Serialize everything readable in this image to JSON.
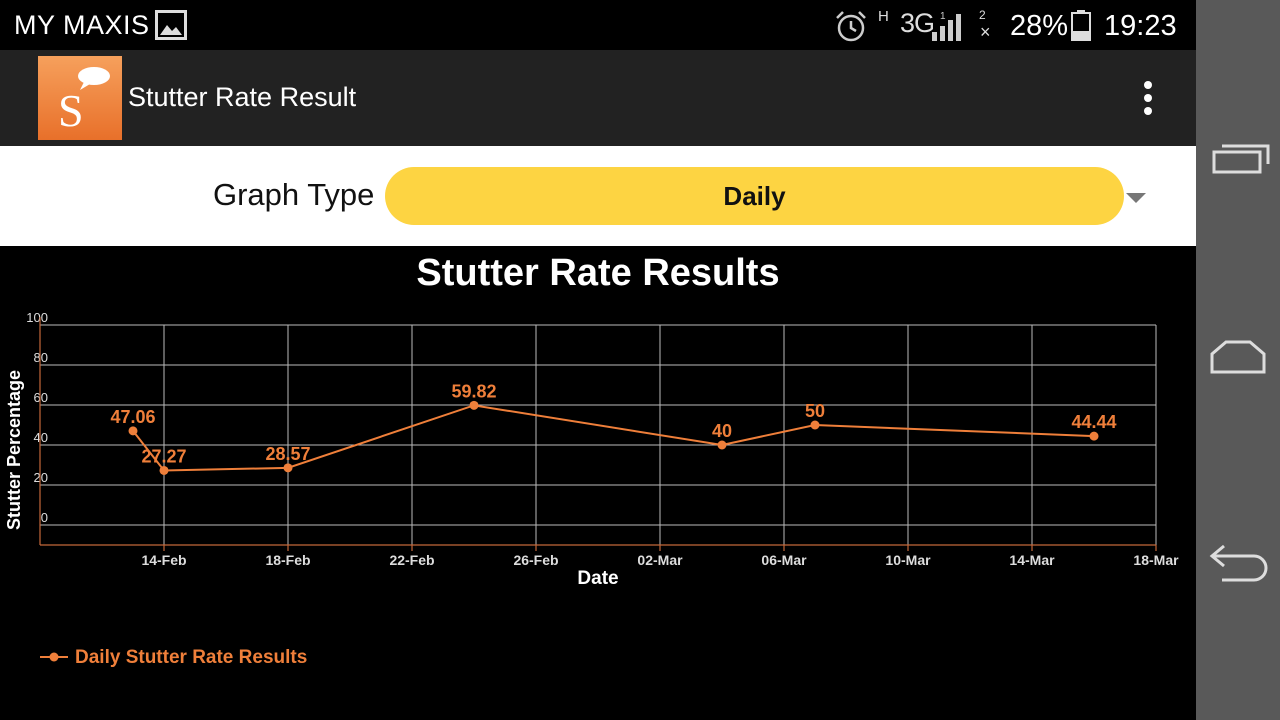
{
  "status_bar": {
    "carrier": "MY MAXIS",
    "network": "H",
    "network_type": "3G",
    "sim1": "1",
    "sim2": "2",
    "battery_percent": "28%",
    "time": "19:23",
    "icons": [
      "gallery-icon",
      "alarm-icon",
      "signal-icon",
      "no-signal-icon",
      "battery-icon"
    ]
  },
  "action_bar": {
    "title": "Stutter Rate Result",
    "logo_letter": "S",
    "logo_color": "#f0883c",
    "overflow_icon": "more-vertical-icon"
  },
  "graph_type": {
    "label": "Graph Type",
    "selected": "Daily",
    "accent": "#fdd442"
  },
  "chart_data": {
    "type": "line",
    "title": "Stutter Rate Results",
    "xlabel": "Date",
    "ylabel": "Stutter Percentage",
    "x_ticks": [
      "14-Feb",
      "18-Feb",
      "22-Feb",
      "26-Feb",
      "02-Mar",
      "06-Mar",
      "10-Mar",
      "14-Mar",
      "18-Mar"
    ],
    "y_ticks": [
      0,
      20,
      40,
      60,
      80,
      100
    ],
    "ylim": [
      -10,
      100
    ],
    "xlim": [
      "2014-02-10",
      "2014-03-18"
    ],
    "grid": true,
    "legend_position": "bottom-left",
    "color": "#ef7f3a",
    "series": [
      {
        "name": "Daily Stutter Rate Results",
        "points": [
          {
            "x": "2014-02-13",
            "y": 47.06,
            "label": "47.06"
          },
          {
            "x": "2014-02-14",
            "y": 27.27,
            "label": "27.27"
          },
          {
            "x": "2014-02-18",
            "y": 28.57,
            "label": "28.57"
          },
          {
            "x": "2014-02-24",
            "y": 59.82,
            "label": "59.82"
          },
          {
            "x": "2014-03-04",
            "y": 40,
            "label": "40"
          },
          {
            "x": "2014-03-07",
            "y": 50,
            "label": "50"
          },
          {
            "x": "2014-03-16",
            "y": 44.44,
            "label": "44.44"
          }
        ]
      }
    ]
  },
  "nav_bar": {
    "icons": [
      "recent-apps-icon",
      "home-icon",
      "back-icon"
    ]
  }
}
